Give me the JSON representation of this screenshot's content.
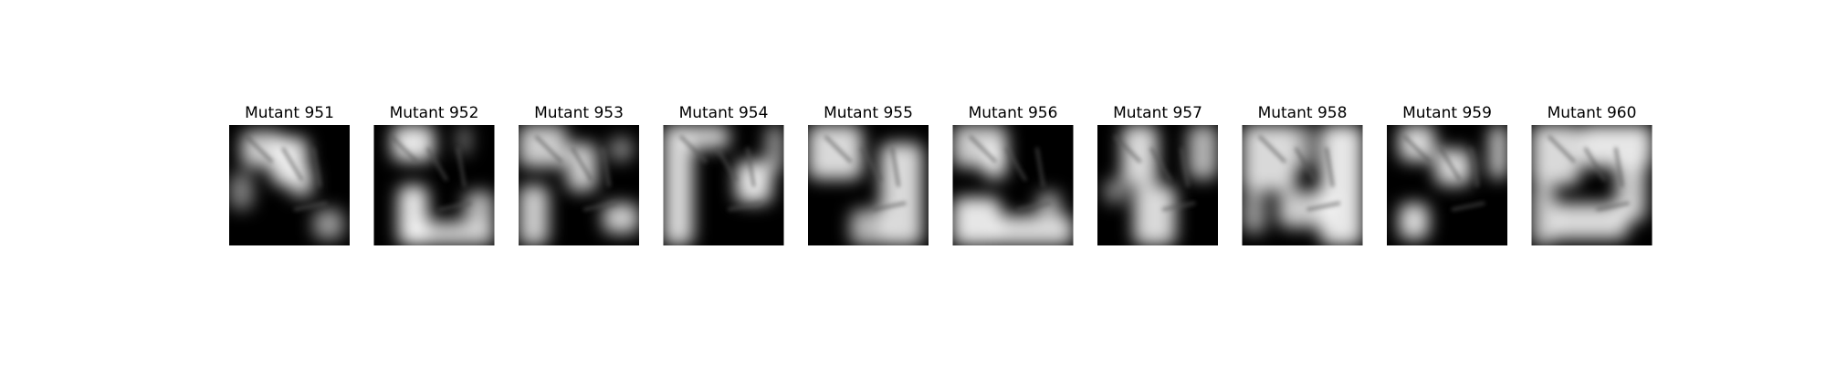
{
  "panels": [
    {
      "title": "Mutant 951"
    },
    {
      "title": "Mutant 952"
    },
    {
      "title": "Mutant 953"
    },
    {
      "title": "Mutant 954"
    },
    {
      "title": "Mutant 955"
    },
    {
      "title": "Mutant 956"
    },
    {
      "title": "Mutant 957"
    },
    {
      "title": "Mutant 958"
    },
    {
      "title": "Mutant 959"
    },
    {
      "title": "Mutant 960"
    }
  ]
}
